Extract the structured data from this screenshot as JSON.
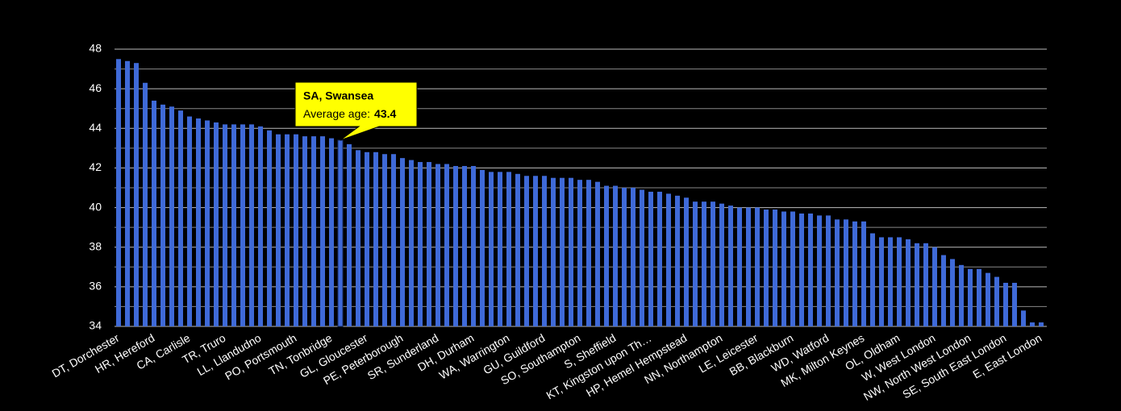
{
  "chart_data": {
    "type": "bar",
    "color": "#3f6ad8",
    "grid": true,
    "highlight": 25,
    "ylim": [
      34,
      48
    ],
    "yticks": [
      34,
      36,
      38,
      40,
      42,
      44,
      46,
      48
    ],
    "minor_grid": [
      35,
      37,
      39,
      41,
      43,
      45,
      47
    ],
    "categories": [
      "DT, Dorchester",
      null,
      null,
      null,
      "HR, Hereford",
      null,
      null,
      null,
      "CA, Carlisle",
      null,
      null,
      null,
      "TR, Truro",
      null,
      null,
      null,
      "LL, Llandudno",
      null,
      null,
      null,
      "PO, Portsmouth",
      null,
      null,
      null,
      "TN, Tonbridge",
      null,
      null,
      null,
      "GL, Gloucester",
      null,
      null,
      null,
      "PE, Peterborough",
      null,
      null,
      null,
      "SR, Sunderland",
      null,
      null,
      null,
      "DH, Durham",
      null,
      null,
      null,
      "WA, Warrington",
      null,
      null,
      null,
      "GU, Guildford",
      null,
      null,
      null,
      "SO, Southampton",
      null,
      null,
      null,
      "S, Sheffield",
      null,
      null,
      null,
      "KT, Kingston upon Th…",
      null,
      null,
      null,
      "HP, Hemel Hempstead",
      null,
      null,
      null,
      "NN, Northampton",
      null,
      null,
      null,
      "LE, Leicester",
      null,
      null,
      null,
      "BB, Blackburn",
      null,
      null,
      null,
      "WD, Watford",
      null,
      null,
      null,
      "MK, Milton Keynes",
      null,
      null,
      null,
      "OL, Oldham",
      null,
      null,
      null,
      "W, West London",
      null,
      null,
      null,
      "NW, North West London",
      null,
      null,
      null,
      "SE, South East London",
      null,
      null,
      null,
      "E, East London"
    ],
    "values": [
      47.5,
      47.4,
      47.3,
      46.3,
      45.4,
      45.2,
      45.1,
      44.9,
      44.6,
      44.5,
      44.4,
      44.3,
      44.2,
      44.2,
      44.2,
      44.2,
      44.1,
      43.9,
      43.7,
      43.7,
      43.7,
      43.6,
      43.6,
      43.6,
      43.5,
      43.4,
      43.2,
      42.9,
      42.8,
      42.8,
      42.7,
      42.7,
      42.5,
      42.4,
      42.3,
      42.3,
      42.2,
      42.2,
      42.1,
      42.1,
      42.1,
      41.9,
      41.8,
      41.8,
      41.8,
      41.7,
      41.6,
      41.6,
      41.6,
      41.5,
      41.5,
      41.5,
      41.4,
      41.4,
      41.3,
      41.1,
      41.1,
      41.0,
      41.0,
      40.9,
      40.8,
      40.8,
      40.7,
      40.6,
      40.5,
      40.3,
      40.3,
      40.3,
      40.2,
      40.1,
      40.0,
      40.0,
      40.0,
      39.9,
      39.9,
      39.8,
      39.8,
      39.7,
      39.7,
      39.6,
      39.6,
      39.4,
      39.4,
      39.3,
      39.3,
      38.7,
      38.5,
      38.5,
      38.5,
      38.4,
      38.2,
      38.2,
      38.0,
      37.6,
      37.4,
      37.1,
      36.9,
      36.9,
      36.7,
      36.5,
      36.2,
      36.2,
      34.8,
      34.2,
      34.2
    ],
    "tooltip": {
      "title": "SA, Swansea",
      "label": "Average age:"
    }
  }
}
